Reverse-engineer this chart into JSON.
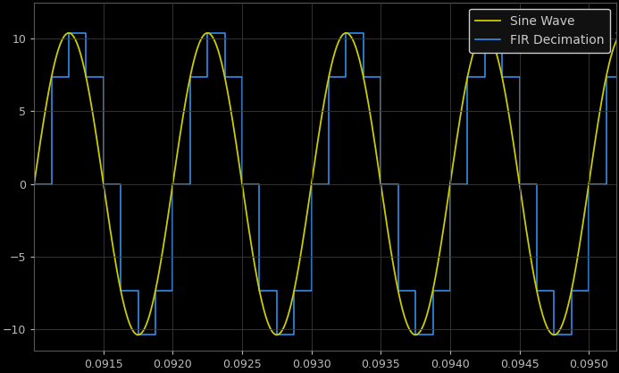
{
  "background_color": "#000000",
  "axes_background_color": "#000000",
  "grid_color": "#3a3a3a",
  "sine_color": "#cccc00",
  "fir_color": "#3399ff",
  "legend_face_color": "#111111",
  "legend_edge_color": "#cccccc",
  "legend_text_color": "#cccccc",
  "tick_label_color": "#bbbbbb",
  "xlim": [
    0.091,
    0.0952
  ],
  "ylim": [
    -11.5,
    12.5
  ],
  "yticks": [
    -10,
    -5,
    0,
    5,
    10
  ],
  "xticks": [
    0.0915,
    0.092,
    0.0925,
    0.093,
    0.0935,
    0.094,
    0.0945,
    0.095
  ],
  "amplitude": 10.4,
  "frequency": 1000,
  "sample_rate_high": 640000,
  "sample_rate_dec": 8000,
  "legend_labels": [
    "Sine Wave",
    "FIR Decimation"
  ],
  "sine_linewidth": 1.3,
  "fir_linewidth": 1.1,
  "figsize": [
    6.93,
    4.17
  ],
  "dpi": 100
}
